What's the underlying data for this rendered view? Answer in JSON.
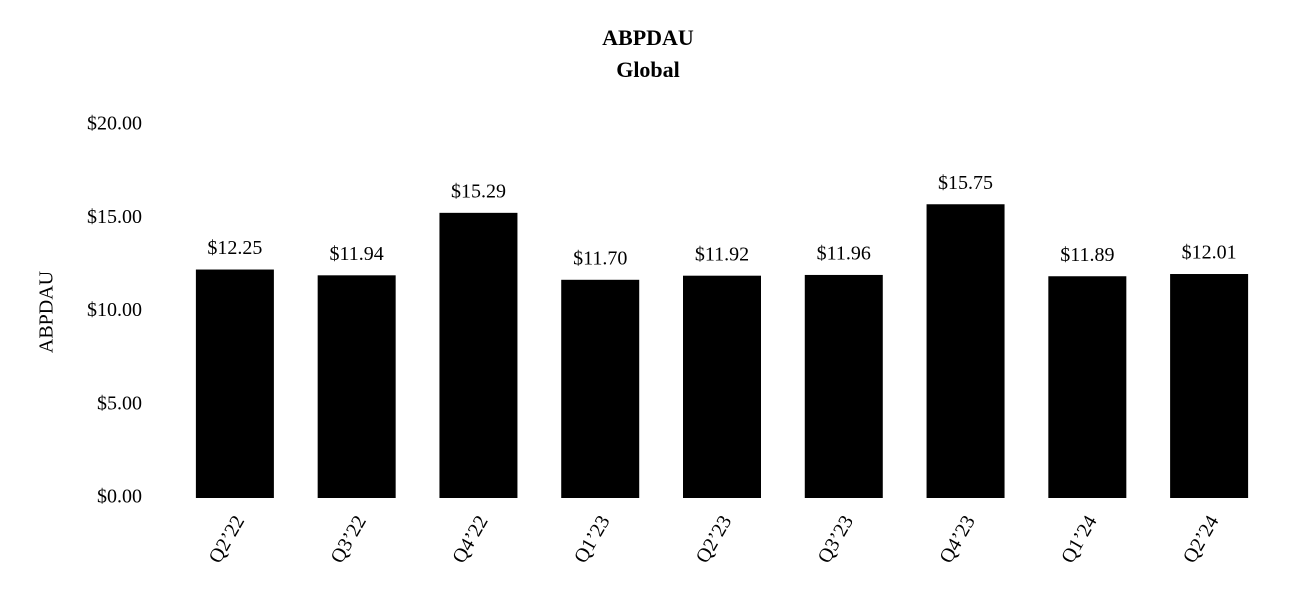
{
  "chart_data": {
    "type": "bar",
    "title": "ABPDAU",
    "subtitle": "Global",
    "y_label": "ABPDAU",
    "categories": [
      "Q2’22",
      "Q3’22",
      "Q4’22",
      "Q1’23",
      "Q2’23",
      "Q3’23",
      "Q4’23",
      "Q1’24",
      "Q2’24"
    ],
    "values": [
      12.25,
      11.94,
      15.29,
      11.7,
      11.92,
      11.96,
      15.75,
      11.89,
      12.01
    ],
    "value_labels": [
      "$12.25",
      "$11.94",
      "$15.29",
      "$11.70",
      "$11.92",
      "$11.96",
      "$15.75",
      "$11.89",
      "$12.01"
    ],
    "color": "#000000",
    "ylim": [
      0,
      20
    ],
    "yticks": [
      {
        "value": 0,
        "label": "$0.00"
      },
      {
        "value": 5,
        "label": "$5.00"
      },
      {
        "value": 10,
        "label": "$10.00"
      },
      {
        "value": 15,
        "label": "$15.00"
      },
      {
        "value": 20,
        "label": "$20.00"
      }
    ],
    "grid": false
  }
}
